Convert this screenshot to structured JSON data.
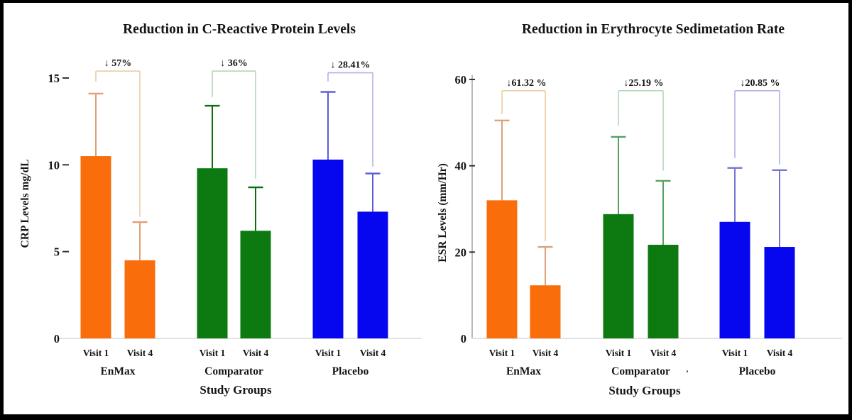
{
  "figure": {
    "background": "#ffffff",
    "border_color": "#000000"
  },
  "chart_data": [
    {
      "type": "bar",
      "title": "Reduction in C-Reactive Protein Levels",
      "xlabel": "Study Groups",
      "ylabel": "CRP Levels mg/dL",
      "ylim": [
        0,
        15.5
      ],
      "yticks": [
        0,
        5,
        10,
        15
      ],
      "grid": false,
      "legend": "none",
      "y_axis_line": false,
      "bar_visit_labels": [
        "Visit 1",
        "Visit 4"
      ],
      "groups": [
        {
          "name": "EnMax",
          "annotation": "↓ 57%",
          "color": "#F96D0B",
          "error_color": "#DFA077",
          "bracket_color": "#EDCBA4",
          "bars": [
            {
              "label": "Visit 1",
              "value": 10.5,
              "error_top": 14.1
            },
            {
              "label": "Visit 4",
              "value": 4.5,
              "error_top": 6.7
            }
          ],
          "bracket": {
            "top": 15.4,
            "left_end": 14.8,
            "right_end": 7.0
          }
        },
        {
          "name": "Comparator",
          "annotation": "↓ 36%",
          "color": "#0C7A10",
          "error_color": "#0A6E0A",
          "bracket_color": "#B5D6B7",
          "bars": [
            {
              "label": "Visit 1",
              "value": 9.8,
              "error_top": 13.4
            },
            {
              "label": "Visit 4",
              "value": 6.2,
              "error_top": 8.7
            }
          ],
          "bracket": {
            "top": 15.4,
            "left_end": 13.9,
            "right_end": 9.2
          }
        },
        {
          "name": "Placebo",
          "annotation": "↓ 28.41%",
          "color": "#0707EF",
          "error_color": "#5B5BD6",
          "bracket_color": "#AFB3E2",
          "bars": [
            {
              "label": "Visit 1",
              "value": 10.3,
              "error_top": 14.2
            },
            {
              "label": "Visit 4",
              "value": 7.3,
              "error_top": 9.5
            }
          ],
          "bracket": {
            "top": 15.3,
            "left_end": 14.8,
            "right_end": 9.9
          }
        }
      ]
    },
    {
      "type": "bar",
      "title": "Reduction in Erythrocyte Sedimetation Rate",
      "xlabel": "Study Groups",
      "ylabel": "ESR Levels (mm/Hr)",
      "ylim": [
        0,
        61
      ],
      "yticks": [
        0,
        20,
        40,
        60
      ],
      "grid": false,
      "legend": "none",
      "y_axis_line": true,
      "stray_mark": "›",
      "bar_visit_labels": [
        "Visit 1",
        "Visit 4"
      ],
      "groups": [
        {
          "name": "EnMax",
          "annotation": "↓61.32 %",
          "color": "#F96D0B",
          "error_color": "#DFA077",
          "bracket_color": "#EDCBA4",
          "bars": [
            {
              "label": "Visit 1",
              "value": 32.0,
              "error_top": 50.5
            },
            {
              "label": "Visit 4",
              "value": 12.3,
              "error_top": 21.2
            }
          ],
          "bracket": {
            "top": 57.4,
            "left_end": 52.0,
            "right_end": 22.5
          }
        },
        {
          "name": "Comparator",
          "annotation": "↓25.19 %",
          "color": "#0C7A10",
          "error_color": "#55A063",
          "bracket_color": "#B5D6B7",
          "bars": [
            {
              "label": "Visit 1",
              "value": 28.8,
              "error_top": 46.7
            },
            {
              "label": "Visit 4",
              "value": 21.7,
              "error_top": 36.5
            }
          ],
          "bracket": {
            "top": 57.4,
            "left_end": 49.3,
            "right_end": 38.9
          }
        },
        {
          "name": "Placebo",
          "annotation": "↓20.85 %",
          "color": "#0707EF",
          "error_color": "#7376D2",
          "bracket_color": "#AFB3E2",
          "bars": [
            {
              "label": "Visit 1",
              "value": 27.0,
              "error_top": 39.5
            },
            {
              "label": "Visit 4",
              "value": 21.2,
              "error_top": 39.0
            }
          ],
          "bracket": {
            "top": 57.4,
            "left_end": 41.8,
            "right_end": 40.3
          }
        }
      ]
    }
  ]
}
